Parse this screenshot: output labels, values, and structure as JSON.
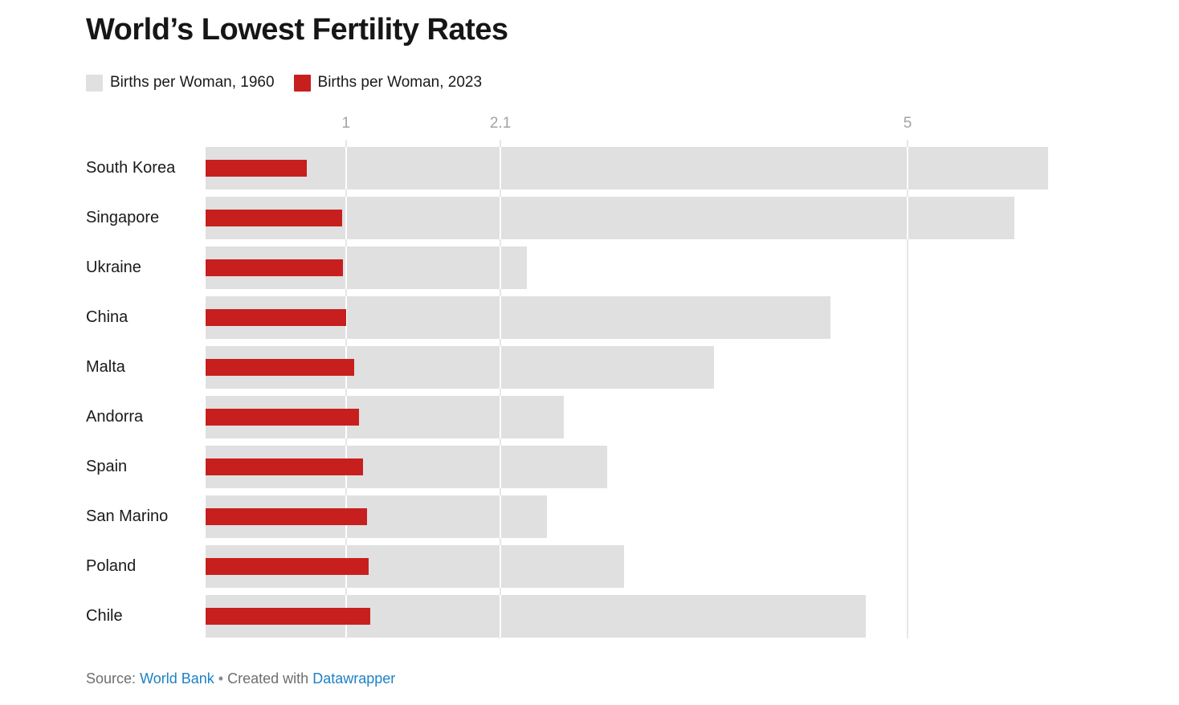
{
  "header": {
    "title": "World’s Lowest Fertility Rates"
  },
  "chart_data": {
    "type": "bar",
    "orientation": "horizontal",
    "title": "World’s Lowest Fertility Rates",
    "categories": [
      "South Korea",
      "Singapore",
      "Ukraine",
      "China",
      "Malta",
      "Andorra",
      "Spain",
      "San Marino",
      "Poland",
      "Chile"
    ],
    "series": [
      {
        "name": "Births per Woman, 1960",
        "color": "#e0e0e0",
        "values": [
          6.0,
          5.76,
          2.29,
          4.45,
          3.62,
          2.55,
          2.86,
          2.43,
          2.98,
          4.7
        ]
      },
      {
        "name": "Births per Woman, 2023",
        "color": "#c71f1e",
        "values": [
          0.72,
          0.97,
          0.98,
          1.0,
          1.06,
          1.09,
          1.12,
          1.15,
          1.16,
          1.17
        ]
      }
    ],
    "x_ticks": [
      {
        "label": "1",
        "value": 1
      },
      {
        "label": "2.1",
        "value": 2.1
      },
      {
        "label": "5",
        "value": 5
      }
    ],
    "xlim": [
      0,
      6.2
    ],
    "grid": true,
    "legend_position": "top",
    "colors": {
      "gridline": "#e7e7e7",
      "axis_label": "#a3a3a3",
      "bar_background": "#e0e0e0",
      "bar_value": "#c71f1e"
    }
  },
  "footer": {
    "prefix": "Source:",
    "source": "World Bank",
    "sep": "•",
    "middle": "Created with",
    "tool": "Datawrapper"
  }
}
